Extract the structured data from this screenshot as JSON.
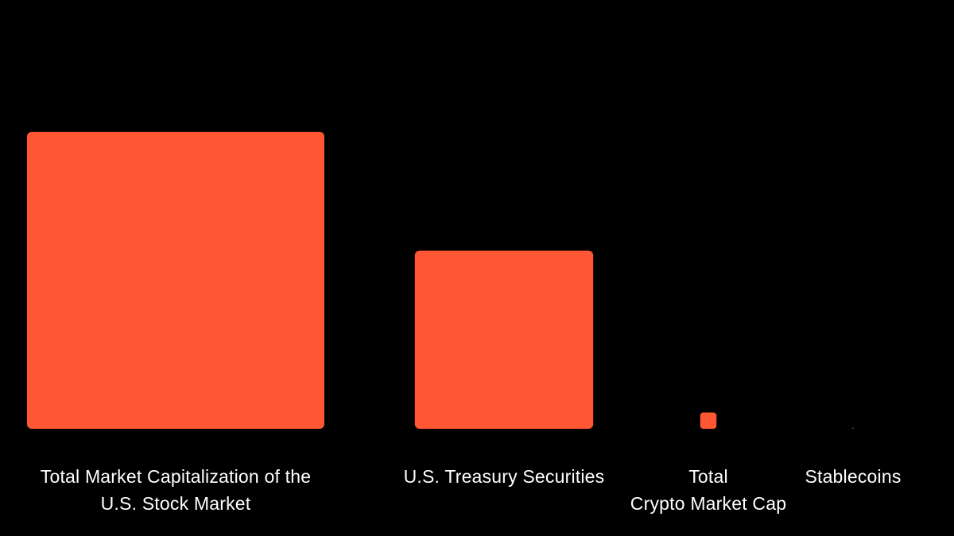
{
  "colors": {
    "background": "#000000",
    "square": "#ff5733",
    "text": "#ffffff"
  },
  "chart_data": {
    "type": "area-squares",
    "categories": [
      "Total Market Capitalization of the U.S. Stock Market",
      "U.S. Treasury Securities",
      "Total Crypto Market Cap",
      "Stablecoins"
    ],
    "category_lines": [
      [
        "Total Market Capitalization of the",
        "U.S. Stock Market"
      ],
      [
        "U.S. Treasury Securities"
      ],
      [
        "Total",
        "Crypto Market Cap"
      ],
      [
        "Stablecoins"
      ]
    ],
    "values": [
      100,
      36,
      0.3,
      0.0008
    ],
    "value_note": "relative size (square area), U.S. Stock Market = 100",
    "title": "",
    "xlabel": "",
    "ylabel": ""
  }
}
